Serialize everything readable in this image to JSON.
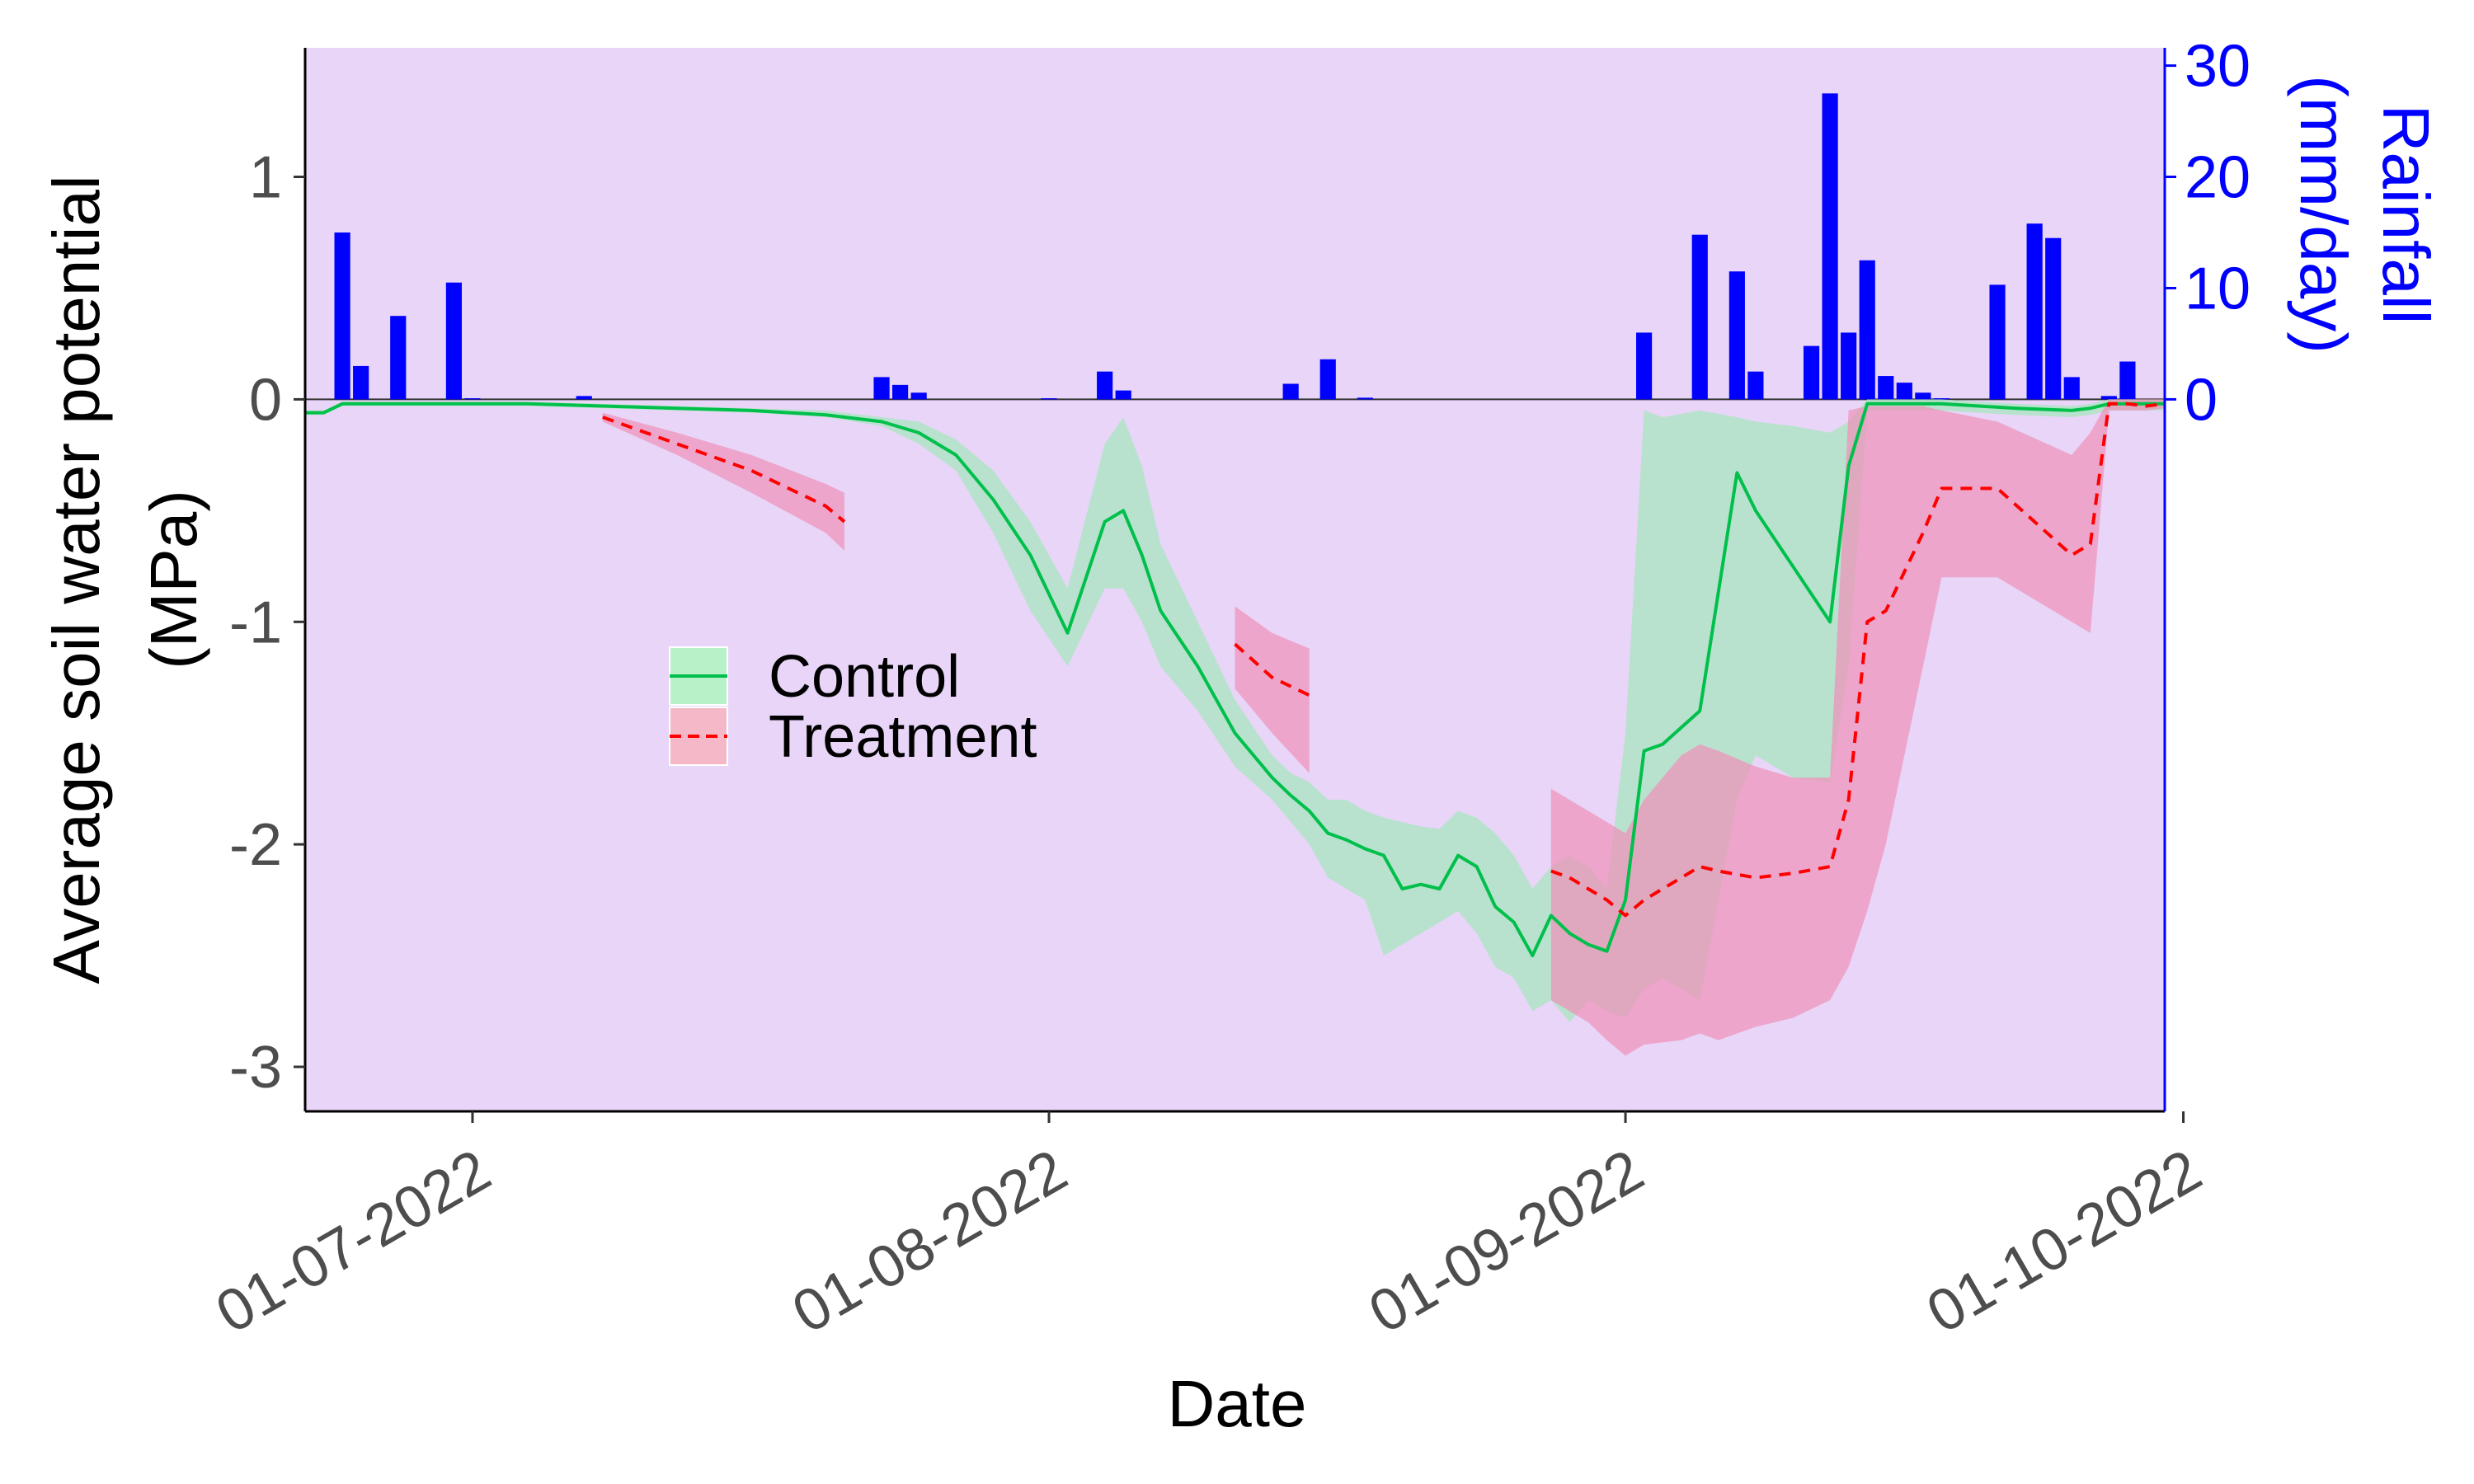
{
  "chart_data": {
    "type": "line",
    "xlabel": "Date",
    "ylabel_line1": "Average soil water potential",
    "ylabel_line2": "(MPa)",
    "y2label_line1": "Rainfall",
    "y2label_line2": "(mm/day)",
    "xlim": [
      "2022-06-22",
      "2022-09-30"
    ],
    "ylim": [
      -3.2,
      1.58
    ],
    "y2lim": [
      0,
      31.6
    ],
    "yticks": [
      1,
      0,
      -1,
      -2,
      -3
    ],
    "y2ticks": [
      30,
      20,
      10,
      0
    ],
    "xticks": [
      {
        "date": "2022-07-01",
        "label": "01-07-2022"
      },
      {
        "date": "2022-08-01",
        "label": "01-08-2022"
      },
      {
        "date": "2022-09-01",
        "label": "01-09-2022"
      },
      {
        "date": "2022-10-01",
        "label": "01-10-2022"
      }
    ],
    "legend": {
      "position": "inside-left",
      "entries": [
        "Control",
        "Treatment"
      ]
    },
    "colors": {
      "panel_bg": "#e8d5f8",
      "control_line": "#00c04b",
      "control_band": "#a8e6c0",
      "treatment_line": "#ff0000",
      "treatment_band": "#f090b8",
      "rain_bar": "#0000ff"
    },
    "series": [
      {
        "name": "Control",
        "dates": [
          "2022-06-22",
          "2022-06-23",
          "2022-06-24",
          "2022-06-26",
          "2022-06-28",
          "2022-06-30",
          "2022-07-01",
          "2022-07-04",
          "2022-07-08",
          "2022-07-12",
          "2022-07-16",
          "2022-07-20",
          "2022-07-23",
          "2022-07-25",
          "2022-07-27",
          "2022-07-29",
          "2022-07-31",
          "2022-08-02",
          "2022-08-04",
          "2022-08-05",
          "2022-08-06",
          "2022-08-07",
          "2022-08-09",
          "2022-08-11",
          "2022-08-13",
          "2022-08-14",
          "2022-08-15",
          "2022-08-16",
          "2022-08-17",
          "2022-08-18",
          "2022-08-19",
          "2022-08-20",
          "2022-08-21",
          "2022-08-22",
          "2022-08-23",
          "2022-08-24",
          "2022-08-25",
          "2022-08-26",
          "2022-08-27",
          "2022-08-28",
          "2022-08-29",
          "2022-08-30",
          "2022-08-31",
          "2022-09-01",
          "2022-09-02",
          "2022-09-03",
          "2022-09-05",
          "2022-09-07",
          "2022-09-08",
          "2022-09-10",
          "2022-09-12",
          "2022-09-13",
          "2022-09-14",
          "2022-09-15",
          "2022-09-16",
          "2022-09-18",
          "2022-09-20",
          "2022-09-22",
          "2022-09-25",
          "2022-09-26",
          "2022-09-27",
          "2022-09-28",
          "2022-09-29",
          "2022-09-30"
        ],
        "values": [
          -0.06,
          -0.06,
          -0.02,
          -0.02,
          -0.02,
          -0.02,
          -0.02,
          -0.02,
          -0.03,
          -0.04,
          -0.05,
          -0.07,
          -0.1,
          -0.15,
          -0.25,
          -0.45,
          -0.7,
          -1.05,
          -0.55,
          -0.5,
          -0.7,
          -0.95,
          -1.2,
          -1.5,
          -1.7,
          -1.78,
          -1.85,
          -1.95,
          -1.98,
          -2.02,
          -2.05,
          -2.2,
          -2.18,
          -2.2,
          -2.05,
          -2.1,
          -2.28,
          -2.35,
          -2.5,
          -2.32,
          -2.4,
          -2.45,
          -2.48,
          -2.25,
          -1.58,
          -1.55,
          -1.4,
          -0.33,
          -0.5,
          -0.75,
          -1.0,
          -0.3,
          -0.02,
          -0.02,
          -0.02,
          -0.02,
          -0.03,
          -0.04,
          -0.05,
          -0.04,
          -0.02,
          -0.02,
          -0.02,
          -0.02
        ],
        "lower": [
          -0.07,
          -0.07,
          -0.03,
          -0.03,
          -0.03,
          -0.03,
          -0.03,
          -0.03,
          -0.04,
          -0.05,
          -0.06,
          -0.08,
          -0.12,
          -0.2,
          -0.32,
          -0.6,
          -0.95,
          -1.2,
          -0.85,
          -0.85,
          -1.0,
          -1.2,
          -1.4,
          -1.65,
          -1.8,
          -1.9,
          -2.0,
          -2.15,
          -2.2,
          -2.25,
          -2.5,
          -2.45,
          -2.4,
          -2.35,
          -2.3,
          -2.4,
          -2.55,
          -2.6,
          -2.75,
          -2.7,
          -2.8,
          -2.7,
          -2.75,
          -2.78,
          -2.65,
          -2.6,
          -2.7,
          -1.8,
          -1.6,
          -1.7,
          -1.72,
          -1.2,
          -0.05,
          -0.05,
          -0.05,
          -0.05,
          -0.06,
          -0.07,
          -0.08,
          -0.07,
          -0.05,
          -0.05,
          -0.05,
          -0.05
        ],
        "upper": [
          -0.05,
          -0.05,
          -0.01,
          -0.01,
          -0.01,
          -0.01,
          -0.01,
          -0.01,
          -0.02,
          -0.03,
          -0.04,
          -0.05,
          -0.08,
          -0.1,
          -0.18,
          -0.32,
          -0.55,
          -0.85,
          -0.2,
          -0.08,
          -0.3,
          -0.65,
          -1.0,
          -1.35,
          -1.6,
          -1.68,
          -1.72,
          -1.8,
          -1.8,
          -1.85,
          -1.88,
          -1.9,
          -1.92,
          -1.93,
          -1.85,
          -1.88,
          -1.95,
          -2.05,
          -2.2,
          -2.1,
          -2.05,
          -2.1,
          -2.2,
          -1.5,
          -0.05,
          -0.08,
          -0.05,
          -0.08,
          -0.1,
          -0.12,
          -0.15,
          -0.1,
          0.0,
          0.0,
          0.0,
          0.0,
          -0.01,
          -0.02,
          -0.03,
          -0.02,
          0.0,
          0.0,
          0.0,
          0.0
        ]
      },
      {
        "name": "Treatment",
        "segments": [
          {
            "dates": [
              "2022-07-08",
              "2022-07-12",
              "2022-07-16",
              "2022-07-20",
              "2022-07-21"
            ],
            "values": [
              -0.08,
              -0.2,
              -0.32,
              -0.48,
              -0.55
            ],
            "lower": [
              -0.1,
              -0.25,
              -0.42,
              -0.6,
              -0.68
            ],
            "upper": [
              -0.06,
              -0.15,
              -0.25,
              -0.38,
              -0.42
            ]
          },
          {
            "dates": [
              "2022-08-11",
              "2022-08-13",
              "2022-08-15"
            ],
            "values": [
              -1.1,
              -1.25,
              -1.33
            ],
            "lower": [
              -1.3,
              -1.5,
              -1.68
            ],
            "upper": [
              -0.93,
              -1.05,
              -1.12
            ]
          },
          {
            "dates": [
              "2022-08-28",
              "2022-08-29",
              "2022-08-30",
              "2022-08-31",
              "2022-09-01",
              "2022-09-02",
              "2022-09-04",
              "2022-09-05",
              "2022-09-06",
              "2022-09-08",
              "2022-09-10",
              "2022-09-12",
              "2022-09-13",
              "2022-09-14",
              "2022-09-15",
              "2022-09-17",
              "2022-09-18",
              "2022-09-21",
              "2022-09-25",
              "2022-09-26",
              "2022-09-27",
              "2022-09-28",
              "2022-09-29",
              "2022-09-30"
            ],
            "values": [
              -2.12,
              -2.15,
              -2.2,
              -2.25,
              -2.32,
              -2.25,
              -2.15,
              -2.1,
              -2.12,
              -2.15,
              -2.13,
              -2.1,
              -1.8,
              -1.0,
              -0.95,
              -0.6,
              -0.4,
              -0.4,
              -0.7,
              -0.65,
              -0.02,
              -0.02,
              -0.03,
              -0.02
            ],
            "lower": [
              -2.7,
              -2.75,
              -2.8,
              -2.88,
              -2.95,
              -2.9,
              -2.88,
              -2.85,
              -2.88,
              -2.82,
              -2.78,
              -2.7,
              -2.55,
              -2.3,
              -2.0,
              -1.2,
              -0.8,
              -0.8,
              -1.0,
              -1.05,
              -0.05,
              -0.05,
              -0.05,
              -0.04
            ],
            "upper": [
              -1.75,
              -1.8,
              -1.85,
              -1.9,
              -1.95,
              -1.8,
              -1.6,
              -1.55,
              -1.58,
              -1.65,
              -1.7,
              -1.7,
              -0.05,
              -0.03,
              -0.03,
              -0.03,
              -0.05,
              -0.1,
              -0.25,
              -0.15,
              0.0,
              0.0,
              0.0,
              0.0
            ]
          }
        ]
      },
      {
        "name": "Rainfall",
        "axis": "right",
        "type": "bar",
        "dates": [
          "2022-06-24",
          "2022-06-25",
          "2022-06-27",
          "2022-06-30",
          "2022-07-01",
          "2022-07-07",
          "2022-07-23",
          "2022-07-24",
          "2022-07-25",
          "2022-08-01",
          "2022-08-04",
          "2022-08-05",
          "2022-08-14",
          "2022-08-16",
          "2022-08-18",
          "2022-09-02",
          "2022-09-05",
          "2022-09-07",
          "2022-09-08",
          "2022-09-11",
          "2022-09-12",
          "2022-09-13",
          "2022-09-14",
          "2022-09-15",
          "2022-09-16",
          "2022-09-17",
          "2022-09-18",
          "2022-09-21",
          "2022-09-23",
          "2022-09-24",
          "2022-09-25",
          "2022-09-27",
          "2022-09-28"
        ],
        "values": [
          15,
          3,
          7.5,
          10.5,
          0.1,
          0.3,
          2,
          1.3,
          0.6,
          0.1,
          2.5,
          0.8,
          1.4,
          3.6,
          0.15,
          6,
          14.8,
          11.5,
          2.5,
          4.8,
          27.5,
          6,
          12.5,
          2.1,
          1.5,
          0.6,
          0.1,
          10.3,
          15.8,
          14.5,
          2,
          0.3,
          3.4
        ]
      }
    ]
  }
}
